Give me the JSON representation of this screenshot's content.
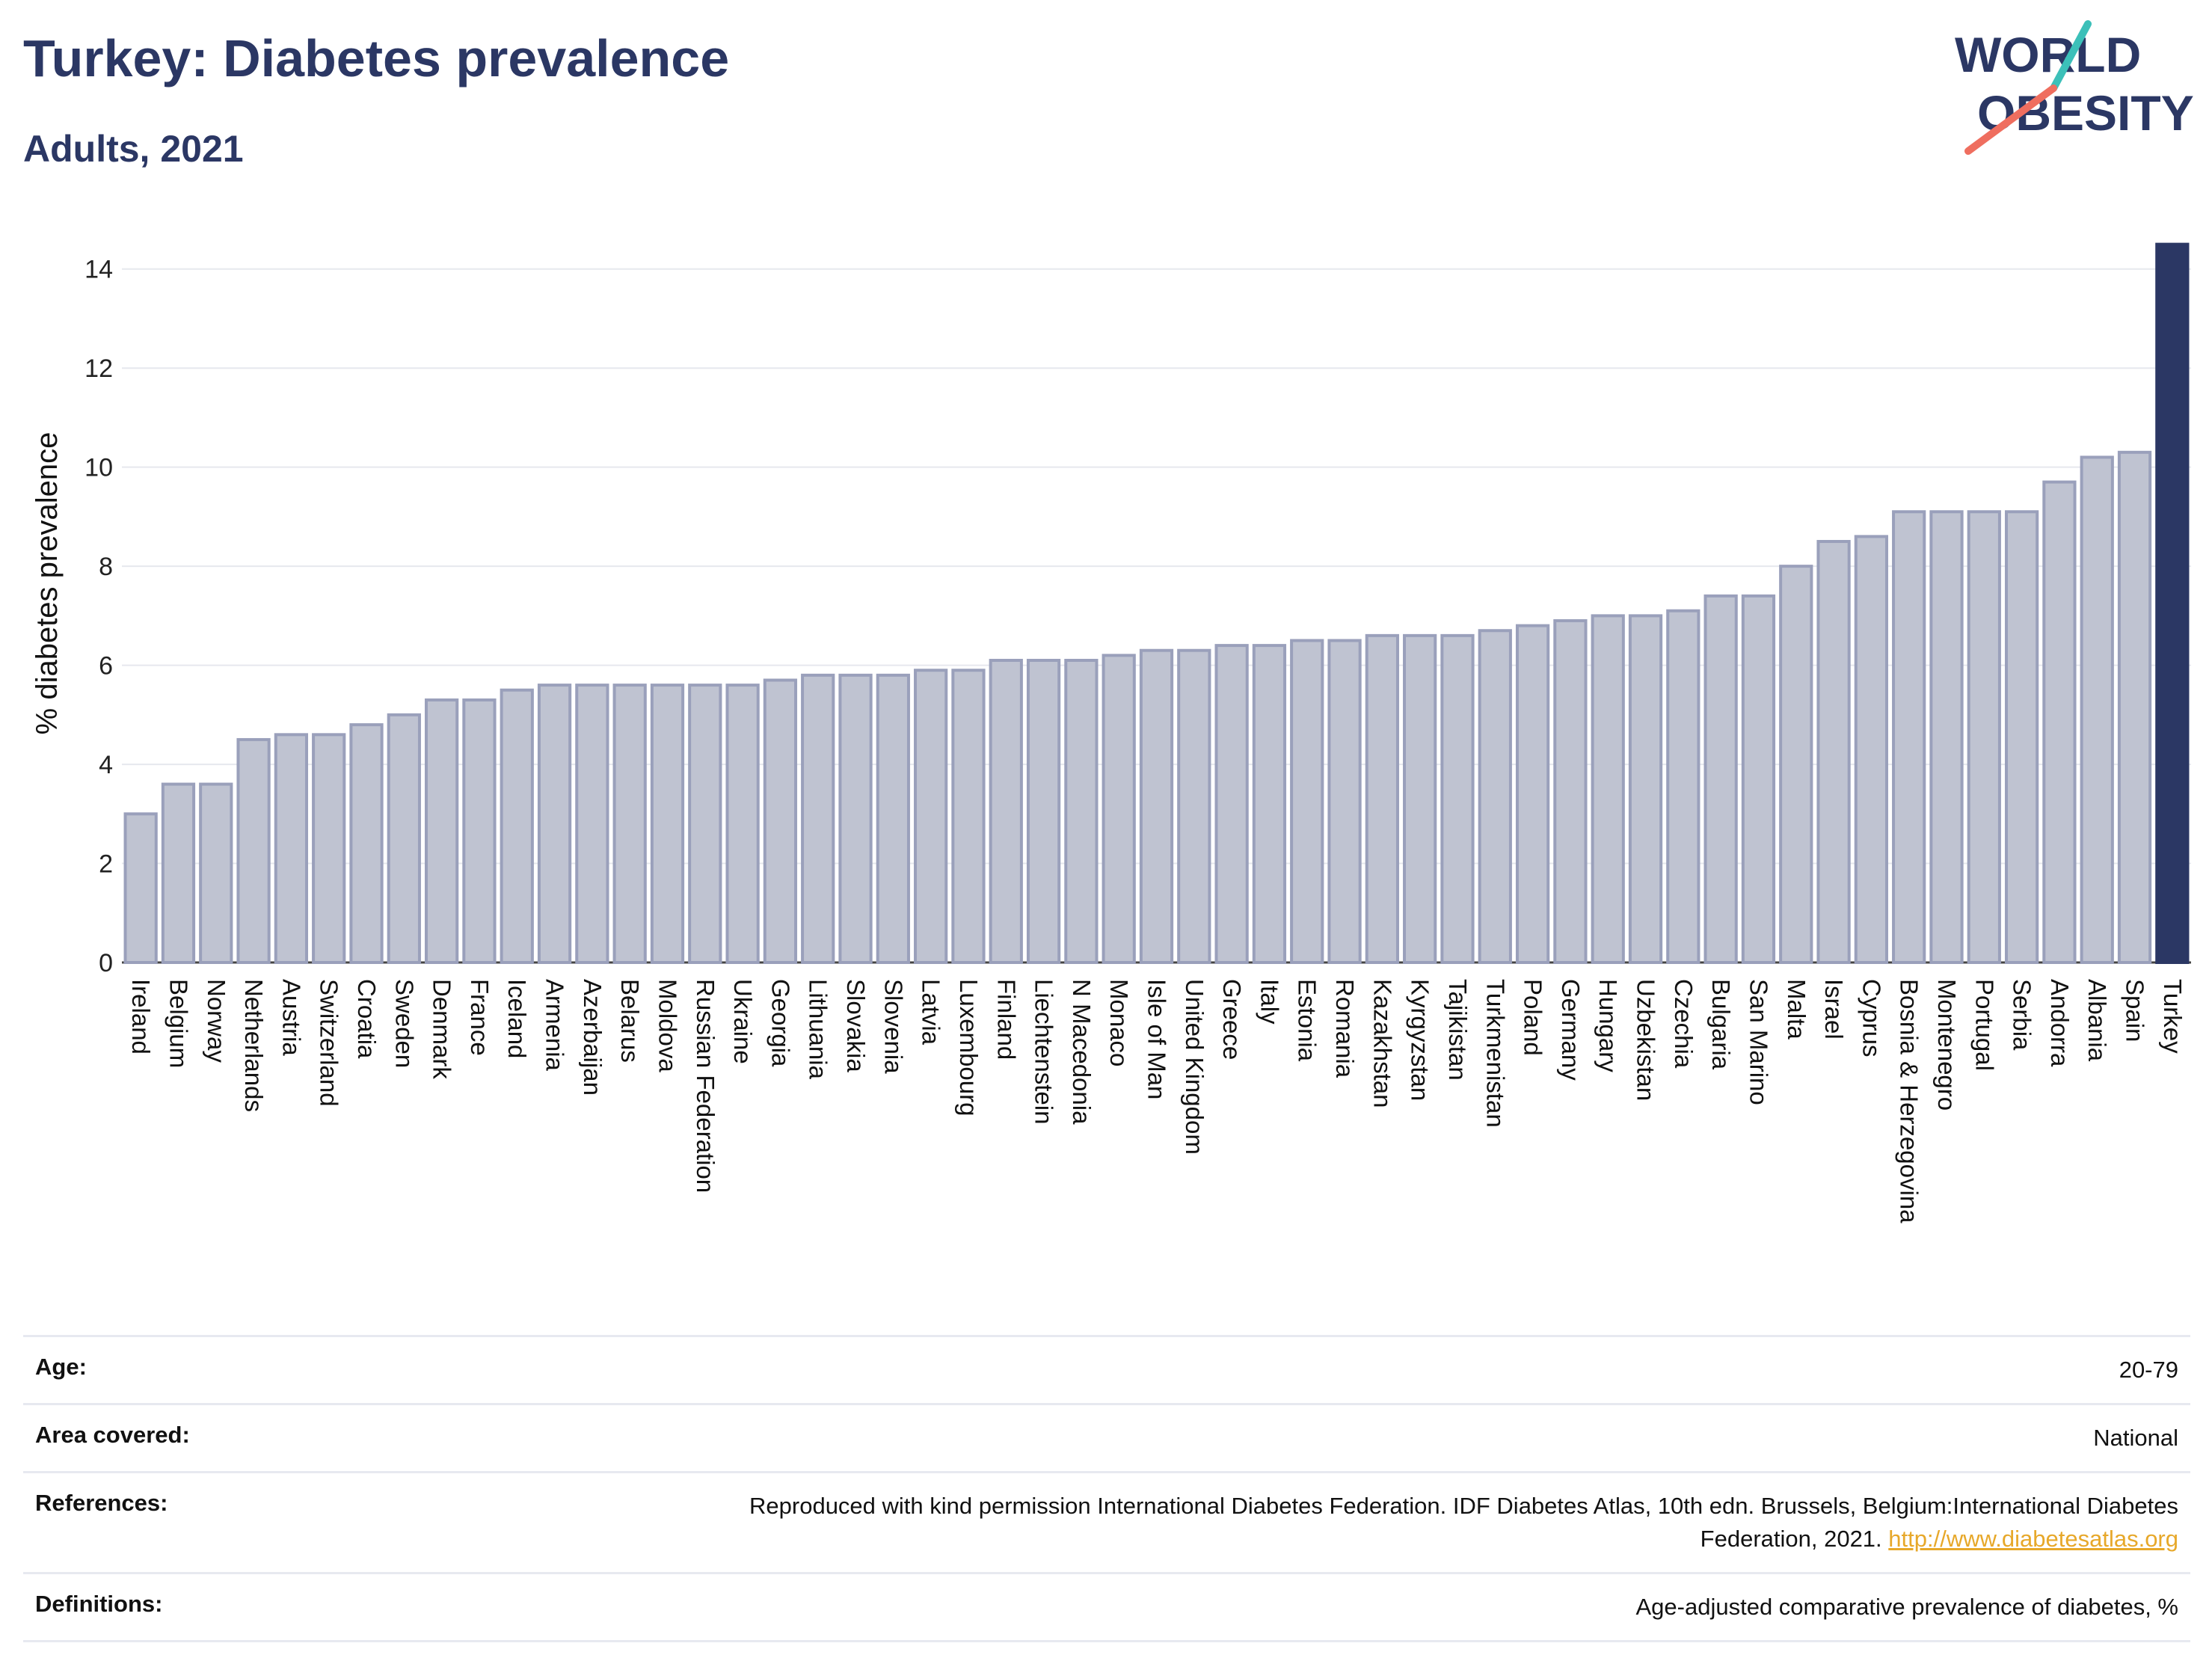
{
  "header": {
    "title": "Turkey: Diabetes prevalence",
    "subtitle": "Adults, 2021"
  },
  "logo": {
    "line1": "WORLD",
    "line2": "OBESITY",
    "accent_teal": "#3cc0b9",
    "accent_coral": "#ef6e5f"
  },
  "chart_data": {
    "type": "bar",
    "ylabel": "% diabetes prevalence",
    "xlabel": "",
    "ylim": [
      0,
      14.6
    ],
    "yticks": [
      0,
      2,
      4,
      6,
      8,
      10,
      12,
      14
    ],
    "grid": true,
    "highlight": "Turkey",
    "colors": {
      "bar_fill": "#bfc3d1",
      "bar_stroke": "#9aa0bb",
      "highlight_fill": "#2b3764",
      "grid": "#e6e8ee"
    },
    "categories": [
      "Ireland",
      "Belgium",
      "Norway",
      "Netherlands",
      "Austria",
      "Switzerland",
      "Croatia",
      "Sweden",
      "Denmark",
      "France",
      "Iceland",
      "Armenia",
      "Azerbaijan",
      "Belarus",
      "Moldova",
      "Russian Federation",
      "Ukraine",
      "Georgia",
      "Lithuania",
      "Slovakia",
      "Slovenia",
      "Latvia",
      "Luxembourg",
      "Finland",
      "Liechtenstein",
      "N Macedonia",
      "Monaco",
      "Isle of Man",
      "United Kingdom",
      "Greece",
      "Italy",
      "Estonia",
      "Romania",
      "Kazakhstan",
      "Kyrgyzstan",
      "Tajikistan",
      "Turkmenistan",
      "Poland",
      "Germany",
      "Hungary",
      "Uzbekistan",
      "Czechia",
      "Bulgaria",
      "San Marino",
      "Malta",
      "Israel",
      "Cyprus",
      "Bosnia & Herzegovina",
      "Montenegro",
      "Portugal",
      "Serbia",
      "Andorra",
      "Albania",
      "Spain",
      "Turkey"
    ],
    "values": [
      3.0,
      3.6,
      3.6,
      4.5,
      4.6,
      4.6,
      4.8,
      5.0,
      5.3,
      5.3,
      5.5,
      5.6,
      5.6,
      5.6,
      5.6,
      5.6,
      5.6,
      5.7,
      5.8,
      5.8,
      5.8,
      5.9,
      5.9,
      6.1,
      6.1,
      6.1,
      6.2,
      6.3,
      6.3,
      6.4,
      6.4,
      6.5,
      6.5,
      6.6,
      6.6,
      6.6,
      6.7,
      6.8,
      6.9,
      7.0,
      7.0,
      7.1,
      7.4,
      7.4,
      8.0,
      8.5,
      8.6,
      9.1,
      9.1,
      9.1,
      9.1,
      9.7,
      10.2,
      10.3,
      14.5
    ]
  },
  "meta": {
    "age_label": "Age:",
    "age_value": "20-79",
    "area_label": "Area covered:",
    "area_value": "National",
    "references_label": "References:",
    "references_text": "Reproduced with kind permission International Diabetes Federation.  IDF Diabetes Atlas, 10th edn. Brussels, Belgium:International Diabetes Federation, 2021. ",
    "references_link": "http://www.diabetesatlas.org",
    "definitions_label": "Definitions:",
    "definitions_value": "Age-adjusted comparative prevalence of diabetes, %"
  }
}
